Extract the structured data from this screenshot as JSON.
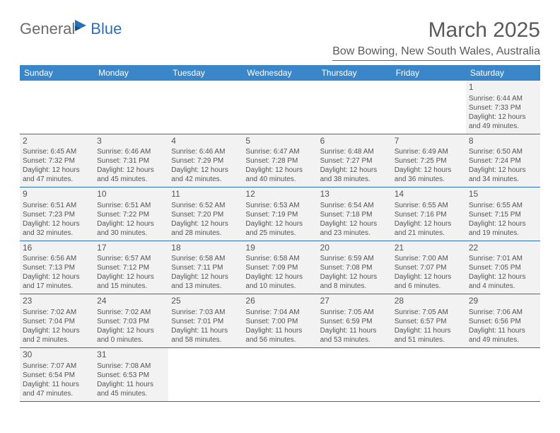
{
  "logo": {
    "text1": "General",
    "text2": "Blue"
  },
  "title": "March 2025",
  "location": "Bow Bowing, New South Wales, Australia",
  "colors": {
    "header_bg": "#3b86c8",
    "header_text": "#ffffff",
    "accent": "#2a70b8",
    "cell_bg": "#f2f2f2",
    "text": "#555555"
  },
  "day_names": [
    "Sunday",
    "Monday",
    "Tuesday",
    "Wednesday",
    "Thursday",
    "Friday",
    "Saturday"
  ],
  "layout": {
    "first_day_column": 6,
    "columns": 7,
    "rows": 6,
    "cell_font_size": 10,
    "daynum_font_size": 12
  },
  "days": [
    {
      "n": 1,
      "sunrise": "6:44 AM",
      "sunset": "7:33 PM",
      "daylight": "12 hours and 49 minutes."
    },
    {
      "n": 2,
      "sunrise": "6:45 AM",
      "sunset": "7:32 PM",
      "daylight": "12 hours and 47 minutes."
    },
    {
      "n": 3,
      "sunrise": "6:46 AM",
      "sunset": "7:31 PM",
      "daylight": "12 hours and 45 minutes."
    },
    {
      "n": 4,
      "sunrise": "6:46 AM",
      "sunset": "7:29 PM",
      "daylight": "12 hours and 42 minutes."
    },
    {
      "n": 5,
      "sunrise": "6:47 AM",
      "sunset": "7:28 PM",
      "daylight": "12 hours and 40 minutes."
    },
    {
      "n": 6,
      "sunrise": "6:48 AM",
      "sunset": "7:27 PM",
      "daylight": "12 hours and 38 minutes."
    },
    {
      "n": 7,
      "sunrise": "6:49 AM",
      "sunset": "7:25 PM",
      "daylight": "12 hours and 36 minutes."
    },
    {
      "n": 8,
      "sunrise": "6:50 AM",
      "sunset": "7:24 PM",
      "daylight": "12 hours and 34 minutes."
    },
    {
      "n": 9,
      "sunrise": "6:51 AM",
      "sunset": "7:23 PM",
      "daylight": "12 hours and 32 minutes."
    },
    {
      "n": 10,
      "sunrise": "6:51 AM",
      "sunset": "7:22 PM",
      "daylight": "12 hours and 30 minutes."
    },
    {
      "n": 11,
      "sunrise": "6:52 AM",
      "sunset": "7:20 PM",
      "daylight": "12 hours and 28 minutes."
    },
    {
      "n": 12,
      "sunrise": "6:53 AM",
      "sunset": "7:19 PM",
      "daylight": "12 hours and 25 minutes."
    },
    {
      "n": 13,
      "sunrise": "6:54 AM",
      "sunset": "7:18 PM",
      "daylight": "12 hours and 23 minutes."
    },
    {
      "n": 14,
      "sunrise": "6:55 AM",
      "sunset": "7:16 PM",
      "daylight": "12 hours and 21 minutes."
    },
    {
      "n": 15,
      "sunrise": "6:55 AM",
      "sunset": "7:15 PM",
      "daylight": "12 hours and 19 minutes."
    },
    {
      "n": 16,
      "sunrise": "6:56 AM",
      "sunset": "7:13 PM",
      "daylight": "12 hours and 17 minutes."
    },
    {
      "n": 17,
      "sunrise": "6:57 AM",
      "sunset": "7:12 PM",
      "daylight": "12 hours and 15 minutes."
    },
    {
      "n": 18,
      "sunrise": "6:58 AM",
      "sunset": "7:11 PM",
      "daylight": "12 hours and 13 minutes."
    },
    {
      "n": 19,
      "sunrise": "6:58 AM",
      "sunset": "7:09 PM",
      "daylight": "12 hours and 10 minutes."
    },
    {
      "n": 20,
      "sunrise": "6:59 AM",
      "sunset": "7:08 PM",
      "daylight": "12 hours and 8 minutes."
    },
    {
      "n": 21,
      "sunrise": "7:00 AM",
      "sunset": "7:07 PM",
      "daylight": "12 hours and 6 minutes."
    },
    {
      "n": 22,
      "sunrise": "7:01 AM",
      "sunset": "7:05 PM",
      "daylight": "12 hours and 4 minutes."
    },
    {
      "n": 23,
      "sunrise": "7:02 AM",
      "sunset": "7:04 PM",
      "daylight": "12 hours and 2 minutes."
    },
    {
      "n": 24,
      "sunrise": "7:02 AM",
      "sunset": "7:03 PM",
      "daylight": "12 hours and 0 minutes."
    },
    {
      "n": 25,
      "sunrise": "7:03 AM",
      "sunset": "7:01 PM",
      "daylight": "11 hours and 58 minutes."
    },
    {
      "n": 26,
      "sunrise": "7:04 AM",
      "sunset": "7:00 PM",
      "daylight": "11 hours and 56 minutes."
    },
    {
      "n": 27,
      "sunrise": "7:05 AM",
      "sunset": "6:59 PM",
      "daylight": "11 hours and 53 minutes."
    },
    {
      "n": 28,
      "sunrise": "7:05 AM",
      "sunset": "6:57 PM",
      "daylight": "11 hours and 51 minutes."
    },
    {
      "n": 29,
      "sunrise": "7:06 AM",
      "sunset": "6:56 PM",
      "daylight": "11 hours and 49 minutes."
    },
    {
      "n": 30,
      "sunrise": "7:07 AM",
      "sunset": "6:54 PM",
      "daylight": "11 hours and 47 minutes."
    },
    {
      "n": 31,
      "sunrise": "7:08 AM",
      "sunset": "6:53 PM",
      "daylight": "11 hours and 45 minutes."
    }
  ],
  "labels": {
    "sunrise": "Sunrise:",
    "sunset": "Sunset:",
    "daylight": "Daylight:"
  }
}
